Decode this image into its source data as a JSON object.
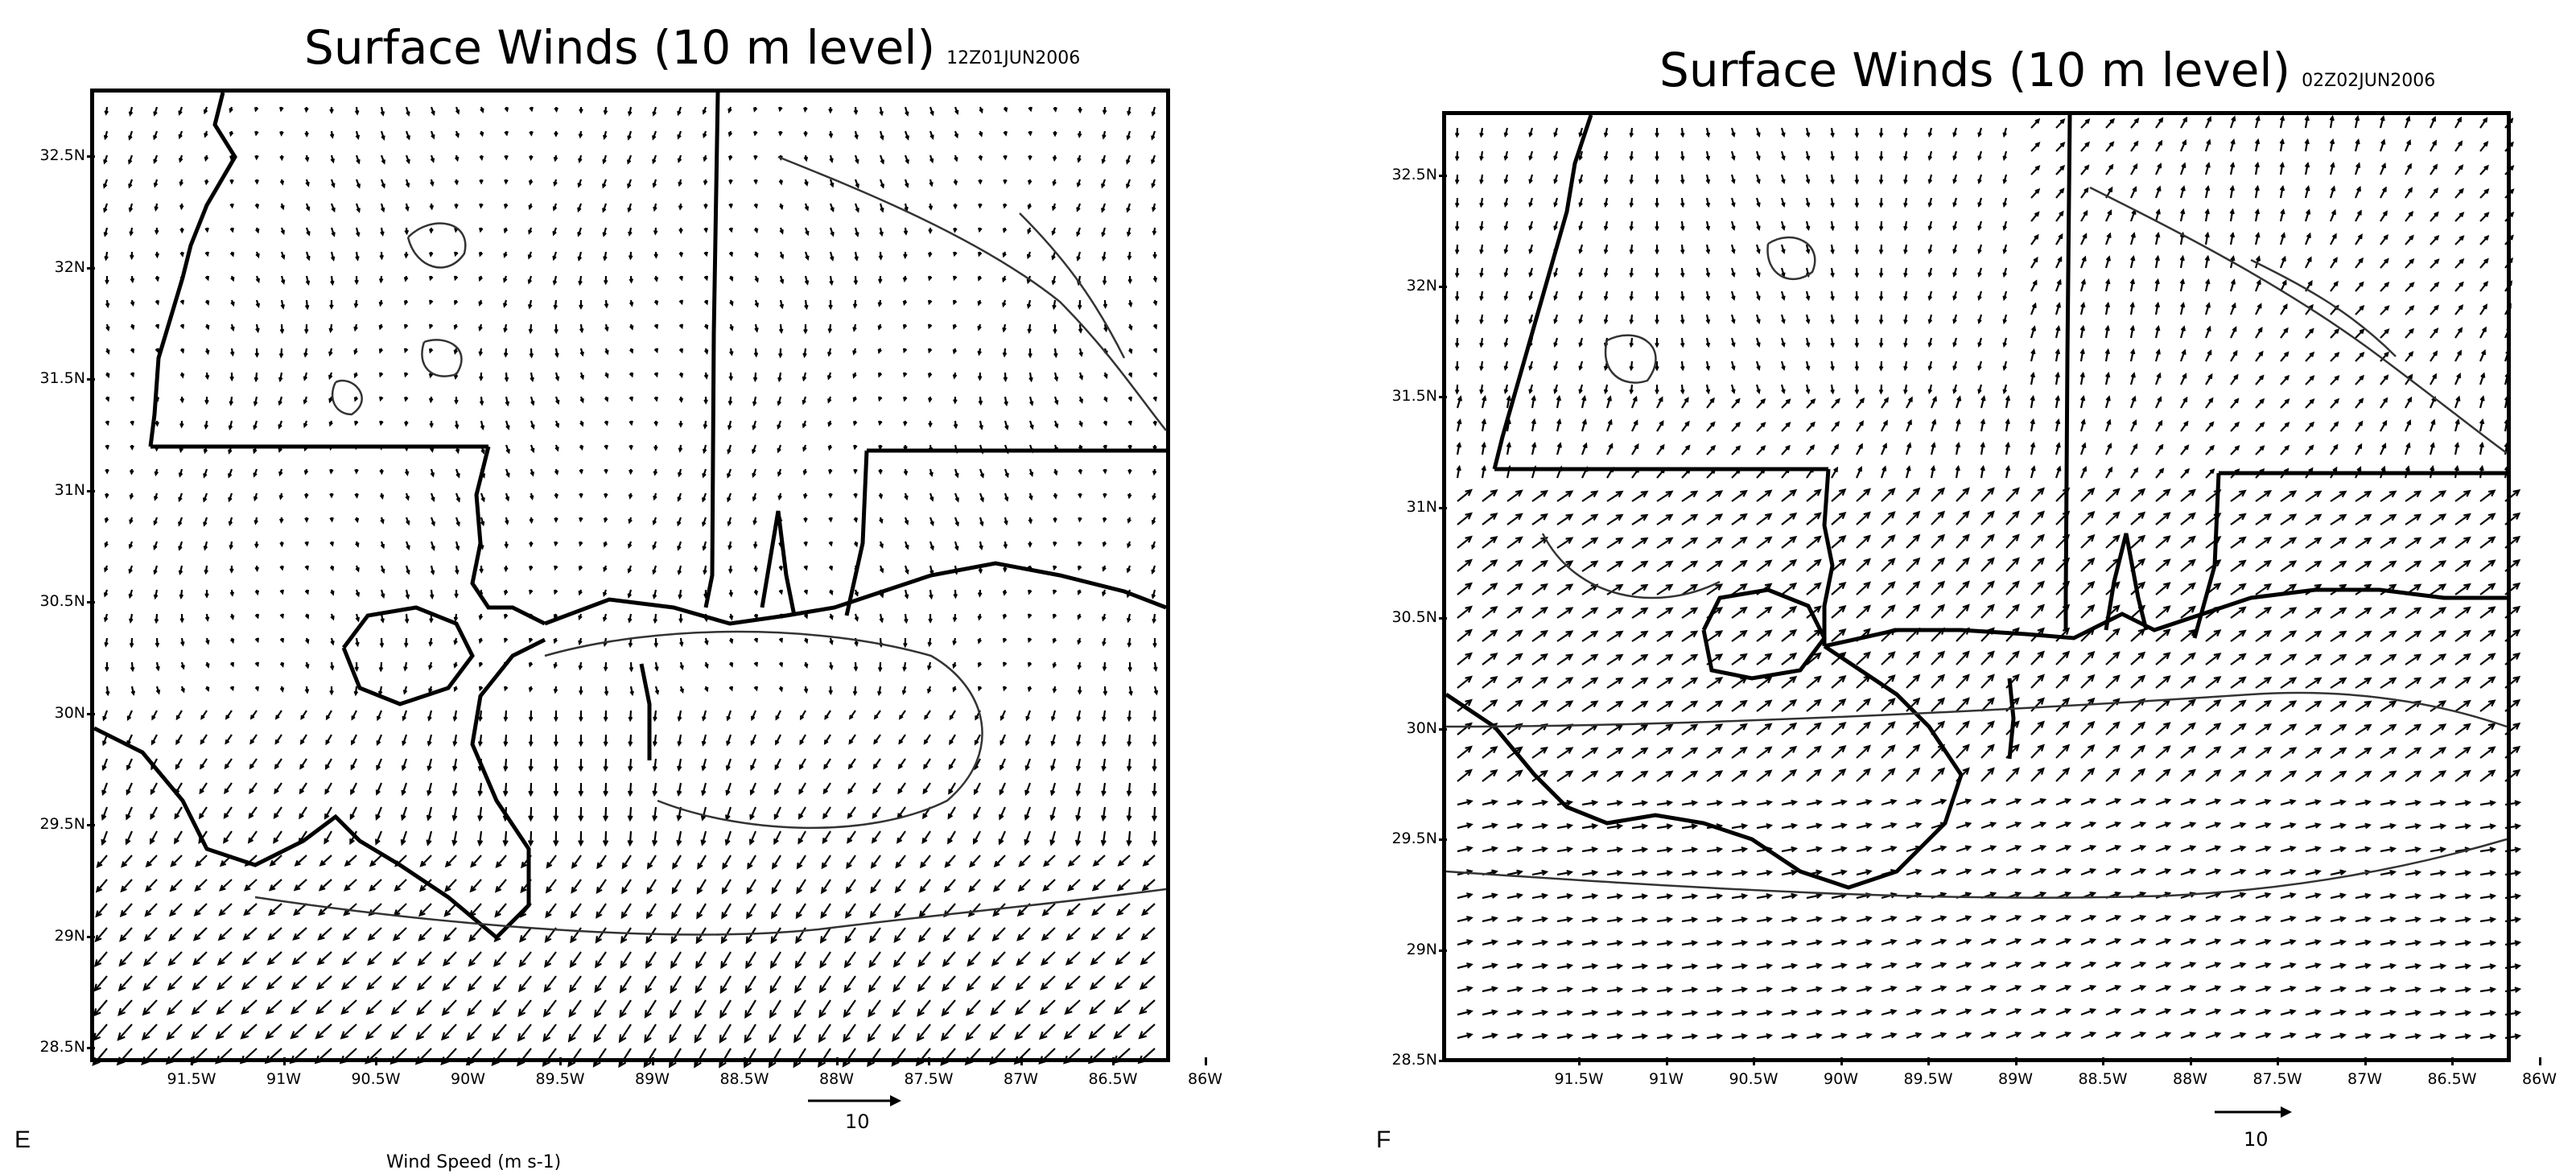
{
  "panels": [
    {
      "id": "E",
      "label": "E",
      "title": "Surface Winds (10 m level)",
      "timestamp": "12Z01JUN2006",
      "lat_labels": [
        "32.5N",
        "32N",
        "31.5N",
        "31N",
        "30.5N",
        "30N",
        "29.5N",
        "29N",
        "28.5N"
      ],
      "lon_labels": [
        "91.5W",
        "91W",
        "90.5W",
        "90W",
        "89.5W",
        "89W",
        "88.5W",
        "88W",
        "87.5W",
        "87W",
        "86.5W",
        "86W"
      ],
      "reference_vector": "10",
      "wind_speed_label": "Wind Speed (m s-1)"
    },
    {
      "id": "F",
      "label": "F",
      "title": "Surface Winds (10 m level)",
      "timestamp": "02Z02JUN2006",
      "lat_labels": [
        "32.5N",
        "32N",
        "31.5N",
        "31N",
        "30.5N",
        "30N",
        "29.5N",
        "29N",
        "28.5N"
      ],
      "lon_labels": [
        "91.5W",
        "91W",
        "90.5W",
        "90W",
        "89.5W",
        "89W",
        "88.5W",
        "88W",
        "87.5W",
        "87W",
        "86.5W",
        "86W"
      ],
      "reference_vector": "10"
    }
  ],
  "map": {
    "lat_range": [
      28.5,
      32.8
    ],
    "lon_range": [
      -91.95,
      -86.0
    ],
    "line_color": "#000000",
    "contour_color": "#333333"
  }
}
